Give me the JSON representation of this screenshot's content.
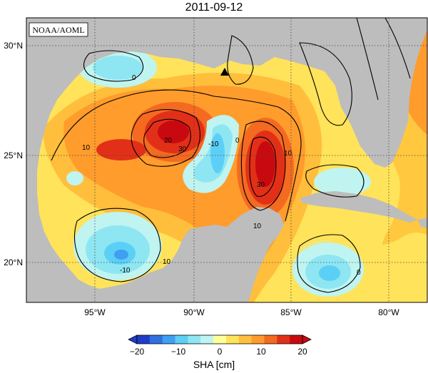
{
  "title": "2011-09-12",
  "credit": "NOAA/AOML",
  "lat_labels": [
    "30°N",
    "25°N",
    "20°N"
  ],
  "lon_labels": [
    "95°W",
    "90°W",
    "85°W",
    "80°W"
  ],
  "contour_labels": [
    "0",
    "10",
    "20",
    "30",
    "-10"
  ],
  "colorbar": {
    "ticks": [
      "−20",
      "−10",
      "0",
      "10",
      "20"
    ],
    "label": "SHA [cm]",
    "colors": [
      "#1e3cc8",
      "#2f6fe0",
      "#3f9ff0",
      "#5ccff6",
      "#8ee6f2",
      "#c0f4f0",
      "#ffff9a",
      "#ffe45a",
      "#ffc040",
      "#ff9a2c",
      "#f46a20",
      "#e23018",
      "#c80a10"
    ]
  },
  "colors": {
    "land": "#bdbdbd",
    "ocean_low": "#9fe8f0",
    "ocean_mid": "#ffd24a",
    "ocean_high": "#e8241a"
  }
}
